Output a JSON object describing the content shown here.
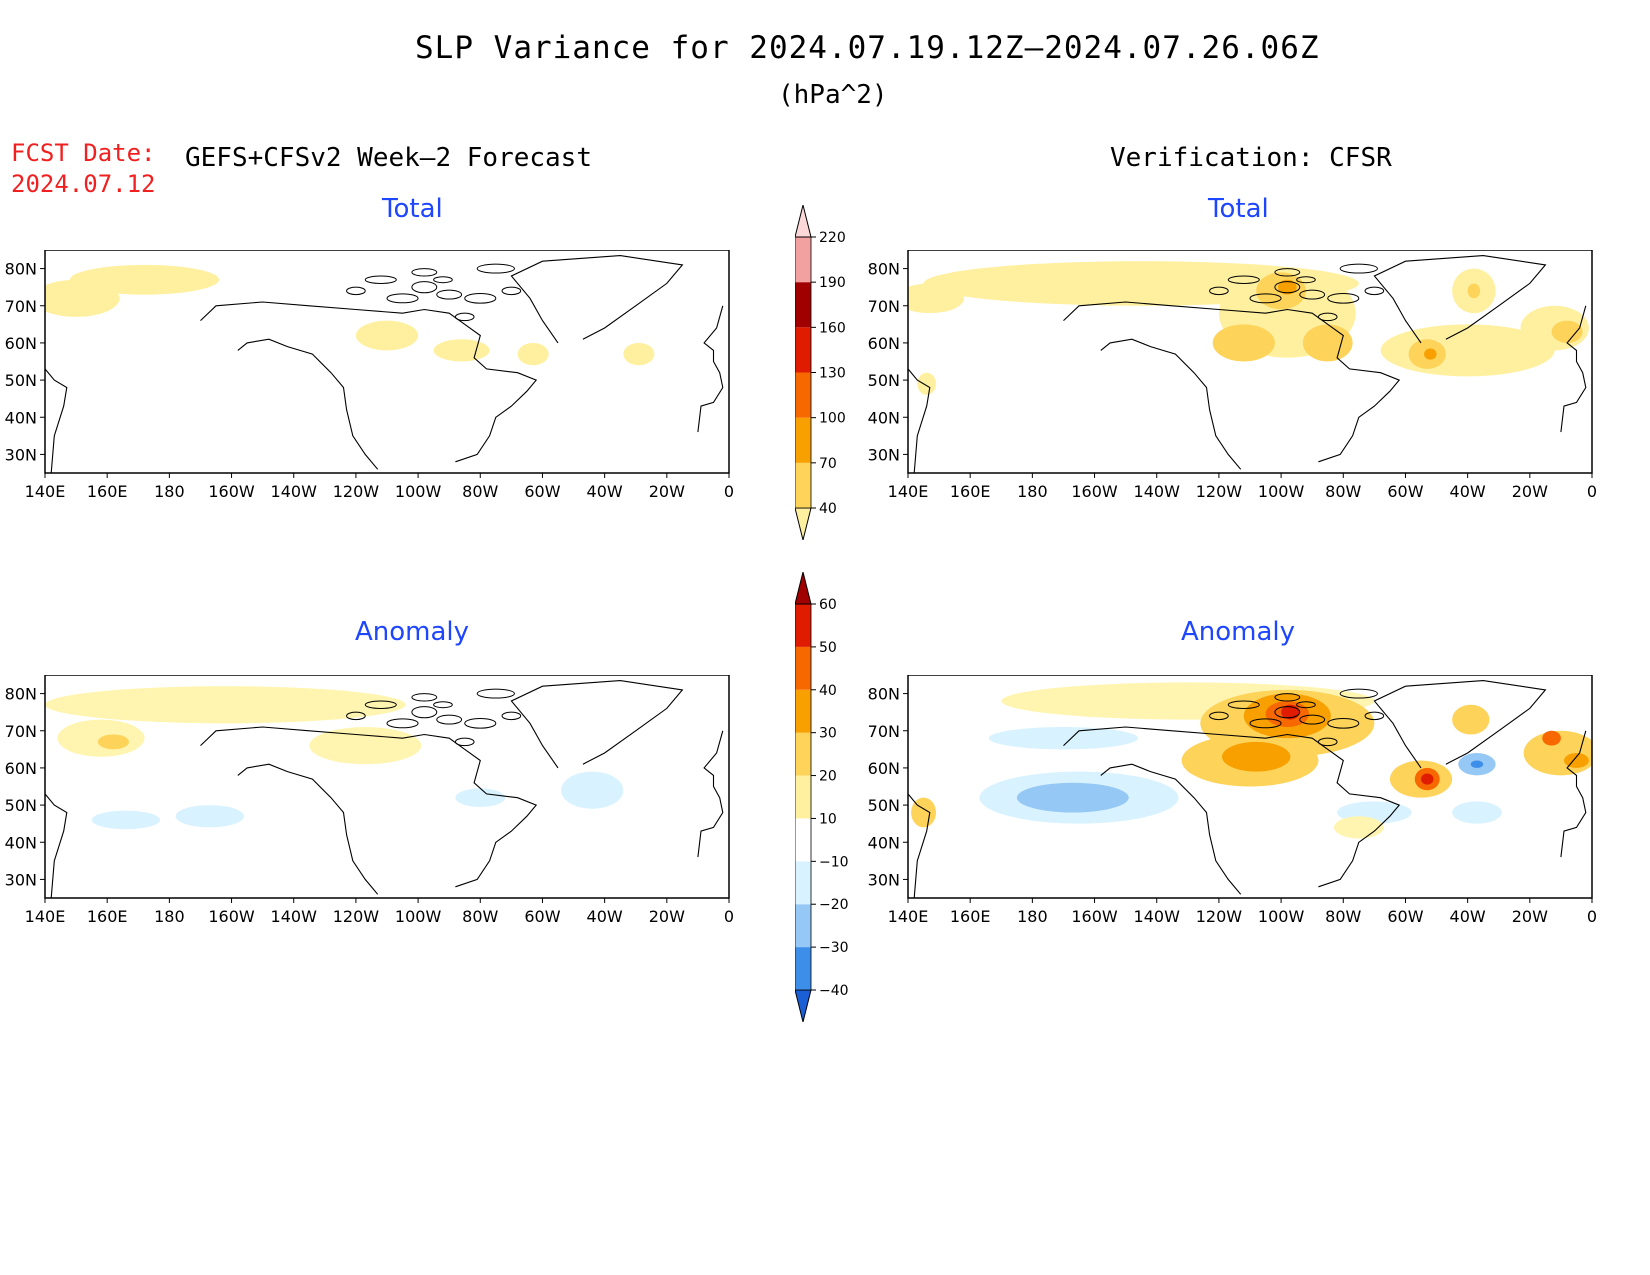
{
  "title": "SLP Variance for 2024.07.19.12Z–2024.07.26.06Z",
  "units": "(hPa^2)",
  "fcst_date": {
    "label": "FCST Date:",
    "value": "2024.07.12"
  },
  "left_header": "GEFS+CFSv2 Week–2 Forecast",
  "right_header": "Verification: CFSR",
  "colors": {
    "title_text": "#000000",
    "fcst_text": "#f02020",
    "panel_title": "#1e46ff"
  },
  "chart_data": [
    {
      "id": "fcst-total",
      "type": "heatmap",
      "title": "Total",
      "x_ticks": [
        "140E",
        "160E",
        "180",
        "160W",
        "140W",
        "120W",
        "100W",
        "80W",
        "60W",
        "40W",
        "20W",
        "0"
      ],
      "y_ticks": [
        "80N",
        "70N",
        "60N",
        "50N",
        "40N",
        "30N"
      ],
      "xlim_lon": [
        140,
        360
      ],
      "ylim_lat": [
        25,
        85
      ],
      "blobs": [
        {
          "lon": 172,
          "lat": 77,
          "rlon": 24,
          "rlat": 4,
          "level": 40
        },
        {
          "lon": 150,
          "lat": 72,
          "rlon": 14,
          "rlat": 5,
          "level": 40
        },
        {
          "lon": 250,
          "lat": 62,
          "rlon": 10,
          "rlat": 4,
          "level": 40
        },
        {
          "lon": 274,
          "lat": 58,
          "rlon": 9,
          "rlat": 3,
          "level": 40
        },
        {
          "lon": 297,
          "lat": 57,
          "rlon": 5,
          "rlat": 3,
          "level": 40
        },
        {
          "lon": 331,
          "lat": 57,
          "rlon": 5,
          "rlat": 3,
          "level": 40
        }
      ]
    },
    {
      "id": "verif-total",
      "type": "heatmap",
      "title": "Total",
      "x_ticks": [
        "140E",
        "160E",
        "180",
        "160W",
        "140W",
        "120W",
        "100W",
        "80W",
        "60W",
        "40W",
        "20W",
        "0"
      ],
      "y_ticks": [
        "80N",
        "70N",
        "60N",
        "50N",
        "40N",
        "30N"
      ],
      "xlim_lon": [
        140,
        360
      ],
      "ylim_lat": [
        25,
        85
      ],
      "blobs": [
        {
          "lon": 215,
          "lat": 76,
          "rlon": 70,
          "rlat": 6,
          "level": 40
        },
        {
          "lon": 262,
          "lat": 68,
          "rlon": 22,
          "rlat": 12,
          "level": 40
        },
        {
          "lon": 260,
          "lat": 74,
          "rlon": 8,
          "rlat": 5,
          "level": 70
        },
        {
          "lon": 262,
          "lat": 75,
          "rlon": 3,
          "rlat": 2,
          "level": 100
        },
        {
          "lon": 248,
          "lat": 60,
          "rlon": 10,
          "rlat": 5,
          "level": 70
        },
        {
          "lon": 275,
          "lat": 60,
          "rlon": 8,
          "rlat": 5,
          "level": 70
        },
        {
          "lon": 320,
          "lat": 58,
          "rlon": 28,
          "rlat": 7,
          "level": 40
        },
        {
          "lon": 307,
          "lat": 57,
          "rlon": 6,
          "rlat": 4,
          "level": 70
        },
        {
          "lon": 308,
          "lat": 57,
          "rlon": 2,
          "rlat": 1.5,
          "level": 100
        },
        {
          "lon": 322,
          "lat": 74,
          "rlon": 7,
          "rlat": 6,
          "level": 40
        },
        {
          "lon": 322,
          "lat": 74,
          "rlon": 2,
          "rlat": 2,
          "level": 70
        },
        {
          "lon": 348,
          "lat": 64,
          "rlon": 11,
          "rlat": 6,
          "level": 40
        },
        {
          "lon": 352,
          "lat": 63,
          "rlon": 5,
          "rlat": 3,
          "level": 70
        },
        {
          "lon": 146,
          "lat": 49,
          "rlon": 3,
          "rlat": 3,
          "level": 40
        },
        {
          "lon": 147,
          "lat": 72,
          "rlon": 11,
          "rlat": 4,
          "level": 40
        }
      ]
    },
    {
      "id": "fcst-anomaly",
      "type": "heatmap",
      "title": "Anomaly",
      "x_ticks": [
        "140E",
        "160E",
        "180",
        "160W",
        "140W",
        "120W",
        "100W",
        "80W",
        "60W",
        "40W",
        "20W",
        "0"
      ],
      "y_ticks": [
        "80N",
        "70N",
        "60N",
        "50N",
        "40N",
        "30N"
      ],
      "xlim_lon": [
        140,
        360
      ],
      "ylim_lat": [
        25,
        85
      ],
      "blobs": [
        {
          "lon": 198,
          "lat": 77,
          "rlon": 58,
          "rlat": 5,
          "level": 10
        },
        {
          "lon": 158,
          "lat": 68,
          "rlon": 14,
          "rlat": 5,
          "level": 10
        },
        {
          "lon": 162,
          "lat": 67,
          "rlon": 5,
          "rlat": 2,
          "level": 20
        },
        {
          "lon": 243,
          "lat": 66,
          "rlon": 18,
          "rlat": 5,
          "level": 10
        },
        {
          "lon": 166,
          "lat": 46,
          "rlon": 11,
          "rlat": 2.5,
          "level": -10
        },
        {
          "lon": 193,
          "lat": 47,
          "rlon": 11,
          "rlat": 3,
          "level": -10
        },
        {
          "lon": 280,
          "lat": 52,
          "rlon": 8,
          "rlat": 2.5,
          "level": -10
        },
        {
          "lon": 316,
          "lat": 54,
          "rlon": 10,
          "rlat": 5,
          "level": -10
        }
      ]
    },
    {
      "id": "verif-anomaly",
      "type": "heatmap",
      "title": "Anomaly",
      "x_ticks": [
        "140E",
        "160E",
        "180",
        "160W",
        "140W",
        "120W",
        "100W",
        "80W",
        "60W",
        "40W",
        "20W",
        "0"
      ],
      "y_ticks": [
        "80N",
        "70N",
        "60N",
        "50N",
        "40N",
        "30N"
      ],
      "xlim_lon": [
        140,
        360
      ],
      "ylim_lat": [
        25,
        85
      ],
      "blobs": [
        {
          "lon": 230,
          "lat": 78,
          "rlon": 60,
          "rlat": 5,
          "level": 10
        },
        {
          "lon": 262,
          "lat": 72,
          "rlon": 28,
          "rlat": 9,
          "level": 20
        },
        {
          "lon": 262,
          "lat": 74,
          "rlon": 14,
          "rlat": 6,
          "level": 30
        },
        {
          "lon": 262,
          "lat": 74.5,
          "rlon": 7,
          "rlat": 3.5,
          "level": 40
        },
        {
          "lon": 263,
          "lat": 75,
          "rlon": 3,
          "rlat": 2,
          "level": 50
        },
        {
          "lon": 250,
          "lat": 62,
          "rlon": 22,
          "rlat": 7,
          "level": 20
        },
        {
          "lon": 252,
          "lat": 63,
          "rlon": 11,
          "rlat": 4,
          "level": 30
        },
        {
          "lon": 305,
          "lat": 57,
          "rlon": 10,
          "rlat": 5,
          "level": 20
        },
        {
          "lon": 307,
          "lat": 57,
          "rlon": 4,
          "rlat": 3,
          "level": 40
        },
        {
          "lon": 307,
          "lat": 57,
          "rlon": 2,
          "rlat": 1.5,
          "level": 50
        },
        {
          "lon": 321,
          "lat": 73,
          "rlon": 6,
          "rlat": 4,
          "level": 20
        },
        {
          "lon": 350,
          "lat": 64,
          "rlon": 12,
          "rlat": 6,
          "level": 20
        },
        {
          "lon": 347,
          "lat": 68,
          "rlon": 3,
          "rlat": 2,
          "level": 40
        },
        {
          "lon": 355,
          "lat": 62,
          "rlon": 4,
          "rlat": 2,
          "level": 30
        },
        {
          "lon": 145,
          "lat": 48,
          "rlon": 4,
          "rlat": 4,
          "level": 20
        },
        {
          "lon": 195,
          "lat": 52,
          "rlon": 32,
          "rlat": 7,
          "level": -10
        },
        {
          "lon": 193,
          "lat": 52,
          "rlon": 18,
          "rlat": 4,
          "level": -20
        },
        {
          "lon": 190,
          "lat": 68,
          "rlon": 24,
          "rlat": 3,
          "level": -10
        },
        {
          "lon": 323,
          "lat": 61,
          "rlon": 6,
          "rlat": 3,
          "level": -20
        },
        {
          "lon": 323,
          "lat": 61,
          "rlon": 2,
          "rlat": 1,
          "level": -30
        },
        {
          "lon": 323,
          "lat": 48,
          "rlon": 8,
          "rlat": 3,
          "level": -10
        },
        {
          "lon": 290,
          "lat": 48,
          "rlon": 12,
          "rlat": 3,
          "level": -10
        },
        {
          "lon": 285,
          "lat": 44,
          "rlon": 8,
          "rlat": 3,
          "level": 10
        }
      ]
    }
  ],
  "colorbars": [
    {
      "id": "total-colorbar",
      "labels": [
        "40",
        "70",
        "100",
        "130",
        "160",
        "190",
        "220"
      ],
      "colors": [
        "#fff0a0",
        "#fdd35a",
        "#f7a000",
        "#f76800",
        "#e01c00",
        "#a00000",
        "#f2a0a0",
        "#fcd8d8"
      ]
    },
    {
      "id": "anomaly-colorbar",
      "labels": [
        "−40",
        "−30",
        "−20",
        "−10",
        "10",
        "20",
        "30",
        "40",
        "50",
        "60"
      ],
      "colors": [
        "#1a5fd6",
        "#3c8ee8",
        "#96c8f5",
        "#d8f2ff",
        "#ffffff",
        "#fff0a0",
        "#fdd35a",
        "#f7a000",
        "#f76800",
        "#e01c00",
        "#a00000"
      ]
    }
  ]
}
